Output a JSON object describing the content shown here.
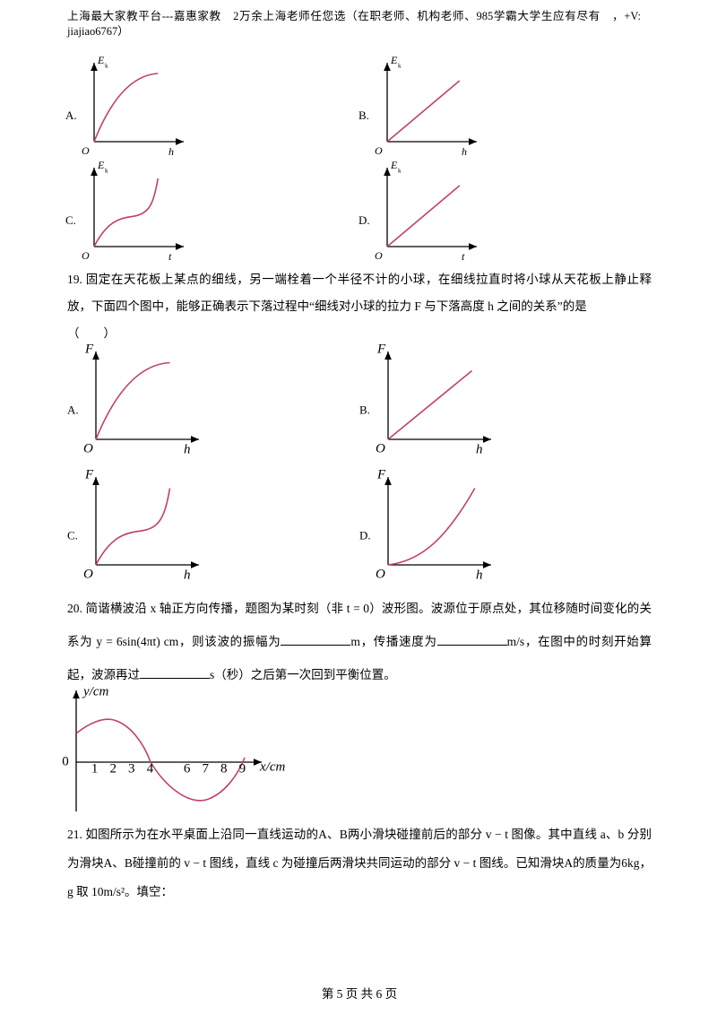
{
  "header": "上海最大家教平台---嘉惠家教　2万余上海老师任您选（在职老师、机构老师、985学霸大学生应有尽有　，+V: jiajiao6767）",
  "q18": {
    "options": [
      {
        "label": "A.",
        "y_axis": "E",
        "y_sub": "k",
        "origin": "O",
        "x_axis": "h"
      },
      {
        "label": "B.",
        "y_axis": "E",
        "y_sub": "k",
        "origin": "O",
        "x_axis": "h"
      },
      {
        "label": "C.",
        "y_axis": "E",
        "y_sub": "k",
        "origin": "O",
        "x_axis": "t"
      },
      {
        "label": "D.",
        "y_axis": "E",
        "y_sub": "k",
        "origin": "O",
        "x_axis": "t"
      }
    ]
  },
  "q19": {
    "text": "19. 固定在天花板上某点的细线，另一端栓着一个半径不计的小球，在细线拉直时将小球从天花板上静止释放，下面四个图中，能够正确表示下落过程中“细线对小球的拉力 F 与下落高度 h 之间的关系”的是",
    "paren": "（　　）",
    "options": [
      {
        "label": "A.",
        "y_axis": "F",
        "origin": "O",
        "x_axis": "h"
      },
      {
        "label": "B.",
        "y_axis": "F",
        "origin": "O",
        "x_axis": "h"
      },
      {
        "label": "C.",
        "y_axis": "F",
        "origin": "O",
        "x_axis": "h"
      },
      {
        "label": "D.",
        "y_axis": "F",
        "origin": "O",
        "x_axis": "h"
      }
    ]
  },
  "q20": {
    "parts": [
      "20. 简谐横波沿 x 轴正方向传播，题图为某时刻（非 t = 0）波形图。波源位于原点处，其位移随时间变化的关系为 y = 6sin(4πt) cm，则该波的振幅为",
      "m，传播速度为",
      "m/s，在图中的时刻开始算起，波源再过",
      "s（秒）之后第一次回到平衡位置。"
    ]
  },
  "wave": {
    "y_label": "y/cm",
    "x_label": "x/cm",
    "origin": "0",
    "ticks": [
      1,
      2,
      3,
      4,
      6,
      7,
      8,
      9
    ]
  },
  "q21": {
    "text": "21. 如图所示为在水平桌面上沿同一直线运动的A、B两小滑块碰撞前后的部分 v − t 图像。其中直线 a、b 分别为滑块A、B碰撞前的 v − t 图线，直线 c 为碰撞后两滑块共同运动的部分 v − t 图线。已知滑块A的质量为6kg，g 取 10m/s²。填空："
  },
  "footer": "第 5 页 共 6 页"
}
